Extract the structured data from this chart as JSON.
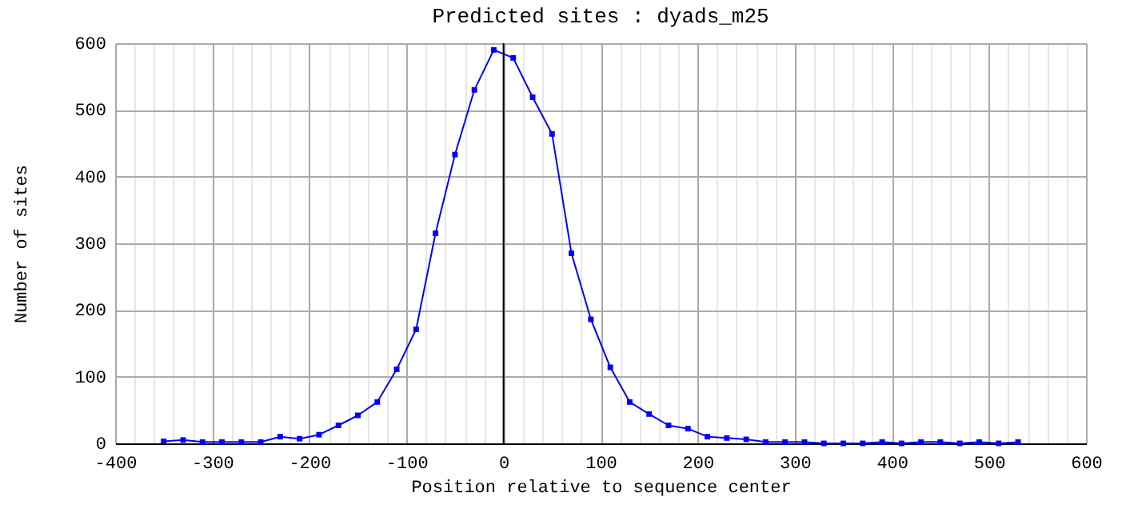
{
  "chart_data": {
    "type": "line",
    "title": "Predicted sites : dyads_m25",
    "xlabel": "Position relative to sequence center",
    "ylabel": "Number of sites",
    "x": [
      -350,
      -330,
      -310,
      -290,
      -270,
      -250,
      -230,
      -210,
      -190,
      -170,
      -150,
      -130,
      -110,
      -90,
      -70,
      -50,
      -30,
      -10,
      10,
      30,
      50,
      70,
      90,
      110,
      130,
      150,
      170,
      190,
      210,
      230,
      250,
      270,
      290,
      310,
      330,
      350,
      370,
      390,
      410,
      430,
      450,
      470,
      490,
      510,
      530
    ],
    "series": [
      {
        "color": "#0000ff",
        "values": [
          3,
          5,
          2,
          2,
          2,
          2,
          10,
          7,
          13,
          27,
          42,
          62,
          111,
          171,
          315,
          433,
          530,
          590,
          578,
          519,
          464,
          285,
          186,
          114,
          62,
          44,
          27,
          22,
          10,
          8,
          6,
          2,
          2,
          2,
          0,
          0,
          0,
          2,
          0,
          2,
          2,
          0,
          2,
          0,
          2
        ]
      }
    ],
    "xlim": [
      -400,
      600
    ],
    "ylim": [
      0,
      600
    ],
    "xticks": [
      -400,
      {
        "value": -380,
        "label": null
      },
      {
        "value": -360,
        "label": null
      },
      {
        "value": -340,
        "label": null
      },
      {
        "value": -320,
        "label": null
      },
      -300,
      {
        "value": -280,
        "label": null
      },
      {
        "value": -260,
        "label": null
      },
      {
        "value": -240,
        "label": null
      },
      {
        "value": -220,
        "label": null
      },
      -200,
      {
        "value": -180,
        "label": null
      },
      {
        "value": -160,
        "label": null
      },
      {
        "value": -140,
        "label": null
      },
      {
        "value": -120,
        "label": null
      },
      -100,
      {
        "value": -80,
        "label": null
      },
      {
        "value": -60,
        "label": null
      },
      {
        "value": -40,
        "label": null
      },
      {
        "value": -20,
        "label": null
      },
      0,
      {
        "value": 20,
        "label": null
      },
      {
        "value": 40,
        "label": null
      },
      {
        "value": 60,
        "label": null
      },
      {
        "value": 80,
        "label": null
      },
      100,
      {
        "value": 120,
        "label": null
      },
      {
        "value": 140,
        "label": null
      },
      {
        "value": 160,
        "label": null
      },
      {
        "value": 180,
        "label": null
      },
      200,
      {
        "value": 220,
        "label": null
      },
      {
        "value": 240,
        "label": null
      },
      {
        "value": 260,
        "label": null
      },
      {
        "value": 280,
        "label": null
      },
      300,
      {
        "value": 320,
        "label": null
      },
      {
        "value": 340,
        "label": null
      },
      {
        "value": 360,
        "label": null
      },
      {
        "value": 380,
        "label": null
      },
      400,
      {
        "value": 420,
        "label": null
      },
      {
        "value": 440,
        "label": null
      },
      {
        "value": 460,
        "label": null
      },
      {
        "value": 480,
        "label": null
      },
      500,
      {
        "value": 520,
        "label": null
      },
      {
        "value": 540,
        "label": null
      },
      {
        "value": 560,
        "label": null
      },
      {
        "value": 580,
        "label": null
      },
      600
    ],
    "yticks": [
      0,
      100,
      200,
      300,
      400,
      500,
      600
    ],
    "ref_lines": [
      {
        "axis": "x",
        "value": 0,
        "color": "#000000"
      }
    ],
    "grid": true,
    "marker": "square",
    "line_style": "solid"
  }
}
